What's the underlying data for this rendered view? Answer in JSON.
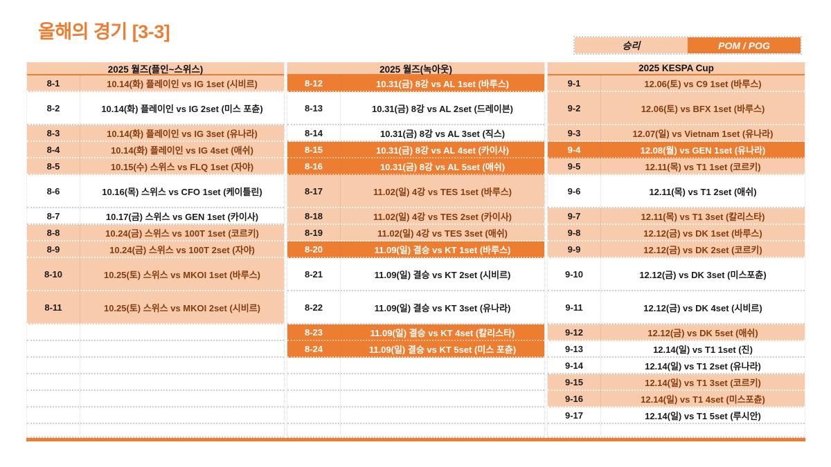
{
  "page_title": "올해의 경기 [3-3]",
  "legend": {
    "win_label": "승리",
    "pom_label": "POM / POG"
  },
  "colors": {
    "accent_orange": "#ED7D31",
    "win_bg": "#F8CBAD",
    "win_text": "#843C0C",
    "pom_text": "#FFFFFF"
  },
  "columns": [
    {
      "header": "2025 월즈(플인~스위스)",
      "empty_slots": 7,
      "rows": [
        {
          "id": "8-1",
          "text": "10.14(화) 플레이인 vs IG 1set (시비르)",
          "status": "win",
          "tall": false
        },
        {
          "id": "8-2",
          "text": "10.14(화) 플레이인 vs IG 2set (미스 포츈)",
          "status": "plain",
          "tall": true
        },
        {
          "id": "8-3",
          "text": "10.14(화) 플레이인 vs IG 3set (유나라)",
          "status": "win",
          "tall": false
        },
        {
          "id": "8-4",
          "text": "10.14(화) 플레이인 vs IG 4set (애쉬)",
          "status": "win",
          "tall": false
        },
        {
          "id": "8-5",
          "text": "10.15(수) 스위스 vs FLQ 1set (자야)",
          "status": "win",
          "tall": false
        },
        {
          "id": "8-6",
          "text": "10.16(목) 스위스 vs CFO 1set (케이틀린)",
          "status": "plain",
          "tall": true
        },
        {
          "id": "8-7",
          "text": "10.17(금) 스위스 vs GEN 1set (카이사)",
          "status": "plain",
          "tall": false
        },
        {
          "id": "8-8",
          "text": "10.24(금) 스위스 vs 100T 1set (코르키)",
          "status": "win",
          "tall": false
        },
        {
          "id": "8-9",
          "text": "10.24(금) 스위스 vs 100T 2set (자야)",
          "status": "win",
          "tall": false
        },
        {
          "id": "8-10",
          "text": "10.25(토) 스위스 vs MKOI 1set (바루스)",
          "status": "win",
          "tall": true
        },
        {
          "id": "8-11",
          "text": "10.25(토) 스위스 vs MKOI 2set (시비르)",
          "status": "win",
          "tall": true
        }
      ]
    },
    {
      "header": "2025 월즈(녹아웃)",
      "empty_slots": 5,
      "rows": [
        {
          "id": "8-12",
          "text": "10.31(금) 8강 vs AL 1set (바루스)",
          "status": "pom",
          "tall": false
        },
        {
          "id": "8-13",
          "text": "10.31(금) 8강 vs AL 2set (드레이븐)",
          "status": "plain",
          "tall": true
        },
        {
          "id": "8-14",
          "text": "10.31(금) 8강 vs AL 3set (직스)",
          "status": "plain",
          "tall": false
        },
        {
          "id": "8-15",
          "text": "10.31(금) 8강 vs AL 4set (카이사)",
          "status": "pom",
          "tall": false
        },
        {
          "id": "8-16",
          "text": "10.31(금) 8강 vs AL 5set (애쉬)",
          "status": "pom",
          "tall": false
        },
        {
          "id": "8-17",
          "text": "11.02(일) 4강 vs TES 1set (바루스)",
          "status": "win",
          "tall": true
        },
        {
          "id": "8-18",
          "text": "11.02(일) 4강 vs TES 2set (카이사)",
          "status": "win",
          "tall": false
        },
        {
          "id": "8-19",
          "text": "11.02(일) 4강 vs TES 3set (애쉬)",
          "status": "win",
          "tall": false
        },
        {
          "id": "8-20",
          "text": "11.09(일) 결승 vs KT 1set (바루스)",
          "status": "pom",
          "tall": false
        },
        {
          "id": "8-21",
          "text": "11.09(일) 결승 vs KT 2set (시비르)",
          "status": "plain",
          "tall": true
        },
        {
          "id": "8-22",
          "text": "11.09(일) 결승 vs KT 3set (유나라)",
          "status": "plain",
          "tall": true
        },
        {
          "id": "8-23",
          "text": "11.09(일) 결승 vs KT 4set (칼리스타)",
          "status": "pom",
          "tall": false
        },
        {
          "id": "8-24",
          "text": "11.09(일) 결승 vs KT 5set (미스 포츈)",
          "status": "pom",
          "tall": false
        }
      ]
    },
    {
      "header": "2025 KESPA Cup",
      "empty_slots": 1,
      "rows": [
        {
          "id": "9-1",
          "text": "12.06(토) vs C9 1set (바루스)",
          "status": "win",
          "tall": false
        },
        {
          "id": "9-2",
          "text": "12.06(토) vs BFX 1set (바루스)",
          "status": "win",
          "tall": true
        },
        {
          "id": "9-3",
          "text": "12.07(일) vs Vietnam 1set (유나라)",
          "status": "win",
          "tall": false
        },
        {
          "id": "9-4",
          "text": "12.08(월) vs GEN 1set (유나라)",
          "status": "pom",
          "tall": false
        },
        {
          "id": "9-5",
          "text": "12.11(목) vs T1 1set (코르키)",
          "status": "win",
          "tall": false
        },
        {
          "id": "9-6",
          "text": "12.11(목) vs T1 2set (애쉬)",
          "status": "plain",
          "tall": true
        },
        {
          "id": "9-7",
          "text": "12.11(목) vs T1 3set (칼리스타)",
          "status": "win",
          "tall": false
        },
        {
          "id": "9-8",
          "text": "12.12(금) vs DK 1set (바루스)",
          "status": "win",
          "tall": false
        },
        {
          "id": "9-9",
          "text": "12.12(금) vs DK 2set (코르키)",
          "status": "win",
          "tall": false
        },
        {
          "id": "9-10",
          "text": "12.12(금) vs DK 3set (미스포츈)",
          "status": "plain",
          "tall": true
        },
        {
          "id": "9-11",
          "text": "12.12(금) vs DK 4set (시비르)",
          "status": "plain",
          "tall": true
        },
        {
          "id": "9-12",
          "text": "12.12(금) vs DK 5set (애쉬)",
          "status": "win",
          "tall": false
        },
        {
          "id": "9-13",
          "text": "12.14(일) vs T1 1set (진)",
          "status": "plain",
          "tall": false
        },
        {
          "id": "9-14",
          "text": "12.14(일) vs T1 2set (유나라)",
          "status": "plain",
          "tall": false
        },
        {
          "id": "9-15",
          "text": "12.14(일) vs T1 3set (코르키)",
          "status": "win",
          "tall": false
        },
        {
          "id": "9-16",
          "text": "12.14(일) vs T1 4set (미스포츈)",
          "status": "win",
          "tall": false
        },
        {
          "id": "9-17",
          "text": "12.14(일) vs T1 5set (루시안)",
          "status": "plain",
          "tall": false
        }
      ]
    }
  ]
}
